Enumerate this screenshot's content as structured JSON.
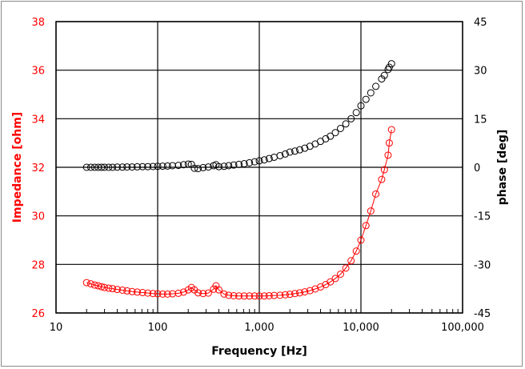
{
  "chart_data": {
    "type": "scatter",
    "xlabel": "Frequency [Hz]",
    "ylabel": "Impedance [ohm]",
    "y2label": "phase [deg]",
    "xscale": "log",
    "xlim": [
      10,
      100000
    ],
    "ylim": [
      26,
      38
    ],
    "y2lim": [
      -45,
      45
    ],
    "grid": true,
    "x_tick_labels": [
      "10",
      "100",
      "1,000",
      "10,000",
      "100,000"
    ],
    "y_tick_labels": [
      "26",
      "28",
      "30",
      "32",
      "34",
      "36",
      "38"
    ],
    "y2_tick_labels": [
      "-45",
      "-30",
      "-15",
      "0",
      "15",
      "30",
      "45"
    ],
    "colors": {
      "impedance": "#ff0000",
      "phase": "#000000"
    },
    "x": [
      20,
      22,
      24,
      26,
      28,
      30,
      33,
      36,
      40,
      45,
      50,
      56,
      63,
      71,
      80,
      90,
      100,
      112,
      125,
      140,
      160,
      180,
      200,
      215,
      230,
      250,
      280,
      315,
      355,
      375,
      400,
      450,
      500,
      560,
      630,
      710,
      800,
      900,
      1000,
      1120,
      1250,
      1400,
      1600,
      1800,
      2000,
      2240,
      2500,
      2800,
      3150,
      3550,
      4000,
      4500,
      5000,
      5600,
      6300,
      7100,
      8000,
      9000,
      10000,
      11200,
      12500,
      14000,
      16000,
      17000,
      18500,
      19000,
      20000
    ],
    "series": [
      {
        "axis": "left",
        "marker": "circle",
        "line": true,
        "values": [
          27.25,
          27.2,
          27.15,
          27.12,
          27.08,
          27.05,
          27.02,
          27.0,
          26.97,
          26.94,
          26.91,
          26.88,
          26.86,
          26.84,
          26.82,
          26.8,
          26.79,
          26.78,
          26.78,
          26.79,
          26.81,
          26.86,
          26.95,
          27.05,
          26.95,
          26.83,
          26.8,
          26.82,
          26.98,
          27.12,
          26.95,
          26.78,
          26.73,
          26.71,
          26.7,
          26.7,
          26.7,
          26.7,
          26.7,
          26.7,
          26.71,
          26.72,
          26.73,
          26.75,
          26.77,
          26.8,
          26.83,
          26.87,
          26.92,
          26.99,
          27.07,
          27.17,
          27.28,
          27.42,
          27.6,
          27.85,
          28.15,
          28.55,
          29.0,
          29.6,
          30.2,
          30.9,
          31.5,
          31.9,
          32.5,
          33.0,
          33.55
        ]
      },
      {
        "axis": "right",
        "marker": "circle",
        "line": false,
        "values": [
          0,
          0,
          0,
          0,
          0,
          0,
          0,
          0,
          0.05,
          0.05,
          0.1,
          0.1,
          0.15,
          0.2,
          0.2,
          0.25,
          0.3,
          0.35,
          0.4,
          0.5,
          0.6,
          0.8,
          1.0,
          0.9,
          -0.3,
          -0.4,
          -0.1,
          0.1,
          0.5,
          0.8,
          0.2,
          0.3,
          0.5,
          0.7,
          0.9,
          1.1,
          1.4,
          1.7,
          2.0,
          2.3,
          2.7,
          3.1,
          3.6,
          4.1,
          4.7,
          5.0,
          5.4,
          5.9,
          6.5,
          7.2,
          8.0,
          8.8,
          9.6,
          10.7,
          12.0,
          13.4,
          15.0,
          16.9,
          19.0,
          21.0,
          23.0,
          25.0,
          27.3,
          28.4,
          30.2,
          30.9,
          32.0
        ]
      }
    ]
  }
}
